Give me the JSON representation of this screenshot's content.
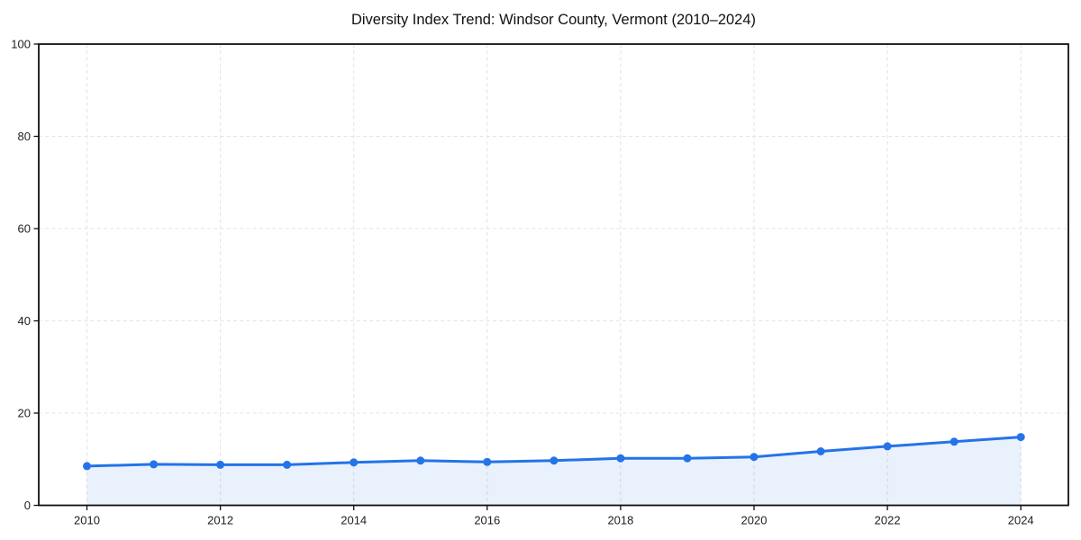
{
  "title": "Diversity Index Trend: Windsor County, Vermont (2010–2024)",
  "colors": {
    "line": "#2473e8",
    "fill_opacity": 0.1,
    "grid": "#e4e4e4",
    "axis": "#111111",
    "tick_text": "#222222",
    "background": "#ffffff"
  },
  "chart_data": {
    "type": "area",
    "title": "Diversity Index Trend: Windsor County, Vermont (2010–2024)",
    "xlabel": "",
    "ylabel": "",
    "x": [
      2010,
      2011,
      2012,
      2013,
      2014,
      2015,
      2016,
      2017,
      2018,
      2019,
      2020,
      2021,
      2022,
      2023,
      2024
    ],
    "series": [
      {
        "name": "Diversity Index",
        "values": [
          8.5,
          8.9,
          8.8,
          8.8,
          9.3,
          9.7,
          9.4,
          9.7,
          10.2,
          10.2,
          10.5,
          11.7,
          12.8,
          13.8,
          14.8
        ]
      }
    ],
    "ylim": [
      0,
      100
    ],
    "y_ticks": [
      0,
      20,
      40,
      60,
      80,
      100
    ],
    "y_tick_labels": [
      "0",
      "20",
      "40",
      "60",
      "80",
      "100"
    ],
    "x_tick_labels": [
      "2010",
      "2012",
      "2014",
      "2016",
      "2018",
      "2020",
      "2022",
      "2024"
    ],
    "grid": "dashed, on both axes at labeled ticks",
    "legend": "none",
    "marker": "circle"
  }
}
